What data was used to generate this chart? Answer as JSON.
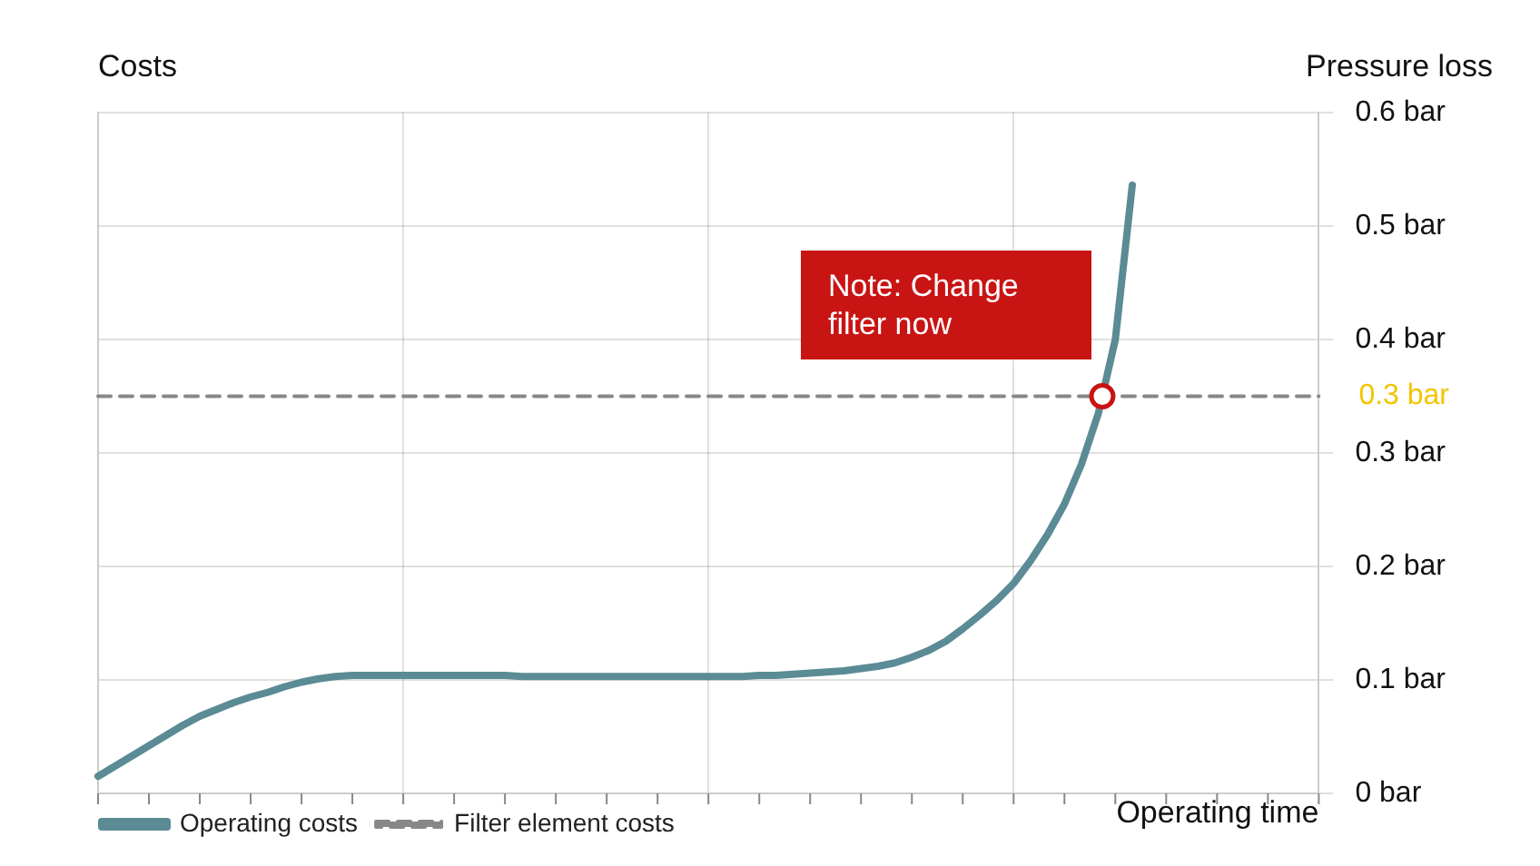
{
  "chart_data": {
    "type": "line",
    "xlabel": "Operating time",
    "ylabel": "Pressure loss",
    "categories": [
      null,
      null,
      null,
      null,
      null,
      null,
      null,
      null,
      null,
      null,
      null,
      null,
      null,
      null,
      null,
      null,
      null,
      null,
      null,
      null,
      null,
      null,
      null,
      null,
      null,
      null,
      null,
      null,
      null,
      null,
      null,
      null,
      null,
      null,
      null,
      null,
      null,
      null,
      null,
      null,
      null,
      null,
      null,
      null,
      null,
      null,
      null,
      null,
      null,
      null,
      null,
      null,
      null,
      null,
      null,
      null,
      null,
      null,
      null,
      null,
      null,
      null,
      null,
      null,
      null,
      null,
      null,
      null,
      null,
      null,
      null,
      null,
      null
    ],
    "ylim": [
      0,
      0.6
    ],
    "yticks": [
      {
        "value": 0,
        "label": "0 bar"
      },
      {
        "value": 0.1,
        "label": "0.1 bar"
      },
      {
        "value": 0.2,
        "label": "0.2 bar"
      },
      {
        "value": 0.3,
        "label": "0.3 bar"
      },
      {
        "value": 0.4,
        "label": "0.4 bar"
      },
      {
        "value": 0.5,
        "label": "0.5 bar"
      },
      {
        "value": 0.6,
        "label": "0.6 bar"
      }
    ],
    "tick_labels": "y",
    "grid": true,
    "legend": "bottom left",
    "series": [
      {
        "name": "Operating costs",
        "color": "#5b8b95",
        "line_style": "solid",
        "values": [
          0.015,
          0.024,
          0.033,
          0.042,
          0.051,
          0.06,
          0.068,
          0.074,
          0.08,
          0.085,
          0.089,
          0.094,
          0.098,
          0.101,
          0.103,
          0.104,
          0.104,
          0.104,
          0.104,
          0.104,
          0.104,
          0.104,
          0.104,
          0.104,
          0.104,
          0.103,
          0.103,
          0.103,
          0.103,
          0.103,
          0.103,
          0.103,
          0.103,
          0.103,
          0.103,
          0.103,
          0.103,
          0.103,
          0.103,
          0.104,
          0.104,
          0.105,
          0.106,
          0.107,
          0.108,
          0.11,
          0.112,
          0.115,
          0.12,
          0.126,
          0.134,
          0.145,
          0.157,
          0.17,
          0.185,
          0.205,
          0.228,
          0.255,
          0.29,
          0.335,
          0.4,
          0.536,
          null,
          null,
          null,
          null,
          null,
          null,
          null,
          null,
          null,
          null,
          null
        ]
      },
      {
        "name": "Filter element costs",
        "color": "#888888",
        "line_style": "dashed",
        "values": [
          0.35,
          0.35,
          0.35,
          0.35,
          0.35,
          0.35,
          0.35,
          0.35,
          0.35,
          0.35,
          0.35,
          0.35,
          0.35,
          0.35,
          0.35,
          0.35,
          0.35,
          0.35,
          0.35,
          0.35,
          0.35,
          0.35,
          0.35,
          0.35,
          0.35,
          0.35,
          0.35,
          0.35,
          0.35,
          0.35,
          0.35,
          0.35,
          0.35,
          0.35,
          0.35,
          0.35,
          0.35,
          0.35,
          0.35,
          0.35,
          0.35,
          0.35,
          0.35,
          0.35,
          0.35,
          0.35,
          0.35,
          0.35,
          0.35,
          0.35,
          0.35,
          0.35,
          0.35,
          0.35,
          0.35,
          0.35,
          0.35,
          0.35,
          0.35,
          0.35,
          0.35,
          0.35,
          0.35,
          0.35,
          0.35,
          0.35,
          0.35,
          0.35,
          0.35,
          0.35,
          0.35,
          0.35,
          0.35
        ]
      }
    ],
    "annotations": [
      "Costs",
      {
        "text": "Note: Change filter now",
        "y": 0.35
      },
      "0.3 bar"
    ]
  }
}
